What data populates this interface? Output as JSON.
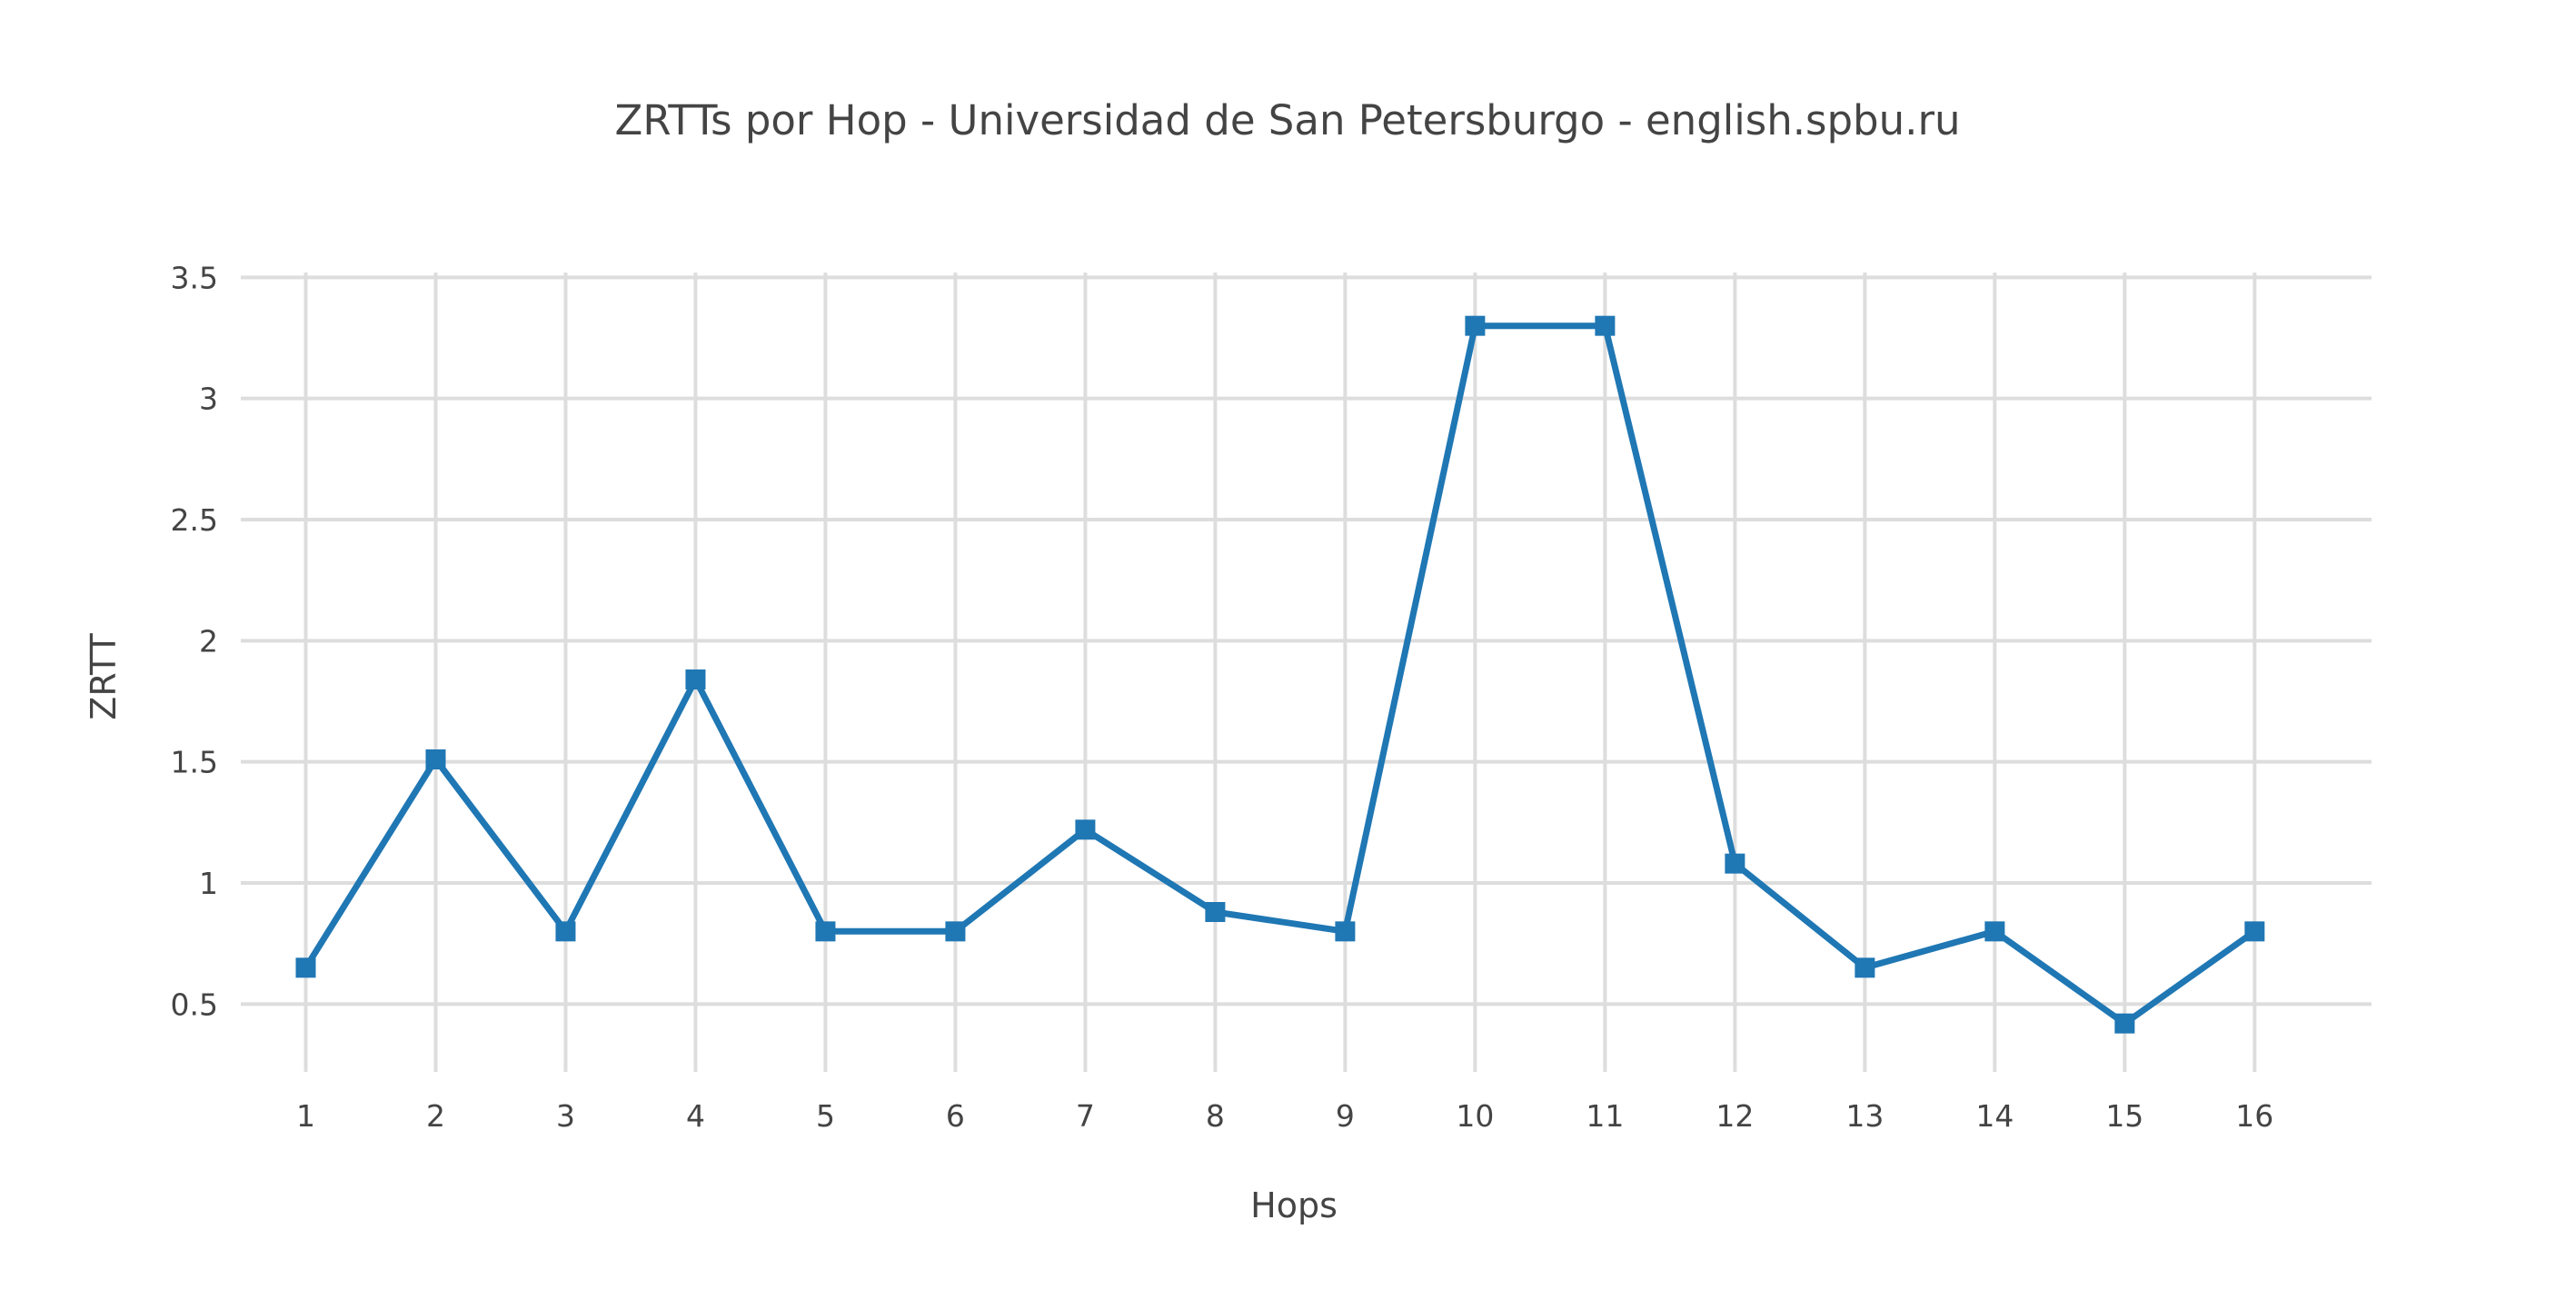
{
  "chart_data": {
    "type": "line",
    "title": "ZRTTs por Hop - Universidad de San Petersburgo - english.spbu.ru",
    "xlabel": "Hops",
    "ylabel": "ZRTT",
    "x": [
      1,
      2,
      3,
      4,
      5,
      6,
      7,
      8,
      9,
      10,
      11,
      12,
      13,
      14,
      15,
      16
    ],
    "x_tick_labels": [
      "1",
      "2",
      "3",
      "4",
      "5",
      "6",
      "7",
      "8",
      "9",
      "10",
      "11",
      "12",
      "13",
      "14",
      "15",
      "16"
    ],
    "y_tick_values": [
      0.5,
      1,
      1.5,
      2,
      2.5,
      3,
      3.5
    ],
    "y_tick_labels": [
      "0.5",
      "1",
      "1.5",
      "2",
      "2.5",
      "3",
      "3.5"
    ],
    "xlim": [
      0.5,
      16.9
    ],
    "ylim": [
      0.22,
      3.52
    ],
    "grid": true,
    "legend": "none",
    "series": [
      {
        "values": [
          0.65,
          1.51,
          0.8,
          1.84,
          0.8,
          0.8,
          1.22,
          0.88,
          0.8,
          3.3,
          3.3,
          1.08,
          0.65,
          0.8,
          0.42,
          0.8
        ],
        "color": "#1f77b4",
        "marker": "square"
      }
    ]
  }
}
